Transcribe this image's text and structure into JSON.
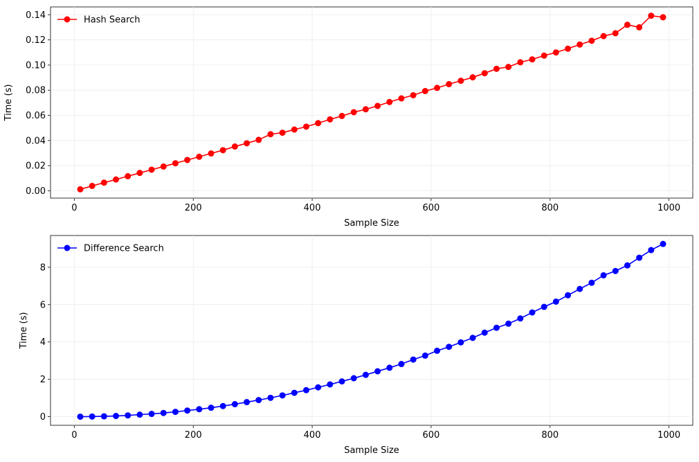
{
  "chart_data": [
    {
      "type": "line",
      "xlabel": "Sample Size",
      "ylabel": "Time (s)",
      "xlim": [
        -40,
        1040
      ],
      "ylim": [
        -0.0058,
        0.1462
      ],
      "xticks": [
        0,
        200,
        400,
        600,
        800,
        1000
      ],
      "yticks": [
        0.0,
        0.02,
        0.04,
        0.06,
        0.08,
        0.1,
        0.12,
        0.14
      ],
      "ytick_decimals": 2,
      "grid": true,
      "legend_position": "top-left",
      "series": [
        {
          "name": "Hash Search",
          "color": "#ff0000",
          "marker": "circle",
          "x": [
            10,
            30,
            50,
            70,
            90,
            110,
            130,
            150,
            170,
            190,
            210,
            230,
            250,
            270,
            290,
            310,
            330,
            350,
            370,
            390,
            410,
            430,
            450,
            470,
            490,
            510,
            530,
            550,
            570,
            590,
            610,
            630,
            650,
            670,
            690,
            710,
            730,
            750,
            770,
            790,
            810,
            830,
            850,
            870,
            890,
            910,
            930,
            950,
            970,
            990
          ],
          "y": [
            0.0012,
            0.0039,
            0.0065,
            0.009,
            0.0116,
            0.0142,
            0.0168,
            0.0193,
            0.0219,
            0.0245,
            0.0271,
            0.0297,
            0.0323,
            0.0352,
            0.0378,
            0.0405,
            0.045,
            0.0462,
            0.0487,
            0.051,
            0.0538,
            0.0568,
            0.0595,
            0.0625,
            0.0648,
            0.0675,
            0.0706,
            0.0735,
            0.076,
            0.0793,
            0.0818,
            0.0848,
            0.0875,
            0.0902,
            0.0935,
            0.097,
            0.0985,
            0.1022,
            0.1045,
            0.1075,
            0.11,
            0.113,
            0.1163,
            0.1193,
            0.123,
            0.1253,
            0.132,
            0.13,
            0.1392,
            0.138
          ]
        }
      ]
    },
    {
      "type": "line",
      "xlabel": "Sample Size",
      "ylabel": "Time (s)",
      "xlim": [
        -40,
        1040
      ],
      "ylim": [
        -0.46,
        9.7
      ],
      "xticks": [
        0,
        200,
        400,
        600,
        800,
        1000
      ],
      "yticks": [
        0,
        2,
        4,
        6,
        8
      ],
      "ytick_decimals": 0,
      "grid": true,
      "legend_position": "top-left",
      "series": [
        {
          "name": "Difference Search",
          "color": "#0000ff",
          "marker": "circle",
          "x": [
            10,
            30,
            50,
            70,
            90,
            110,
            130,
            150,
            170,
            190,
            210,
            230,
            250,
            270,
            290,
            310,
            330,
            350,
            370,
            390,
            410,
            430,
            450,
            470,
            490,
            510,
            530,
            550,
            570,
            590,
            610,
            630,
            650,
            670,
            690,
            710,
            730,
            750,
            770,
            790,
            810,
            830,
            850,
            870,
            890,
            910,
            930,
            950,
            970,
            990
          ],
          "y": [
            0.0,
            0.01,
            0.02,
            0.04,
            0.07,
            0.11,
            0.15,
            0.2,
            0.26,
            0.33,
            0.4,
            0.48,
            0.57,
            0.67,
            0.78,
            0.89,
            1.01,
            1.14,
            1.28,
            1.42,
            1.57,
            1.73,
            1.89,
            2.06,
            2.24,
            2.43,
            2.62,
            2.82,
            3.06,
            3.27,
            3.53,
            3.74,
            3.98,
            4.22,
            4.5,
            4.76,
            4.98,
            5.26,
            5.58,
            5.88,
            6.16,
            6.5,
            6.84,
            7.17,
            7.57,
            7.8,
            8.1,
            8.51,
            8.92,
            9.25
          ]
        }
      ]
    }
  ]
}
